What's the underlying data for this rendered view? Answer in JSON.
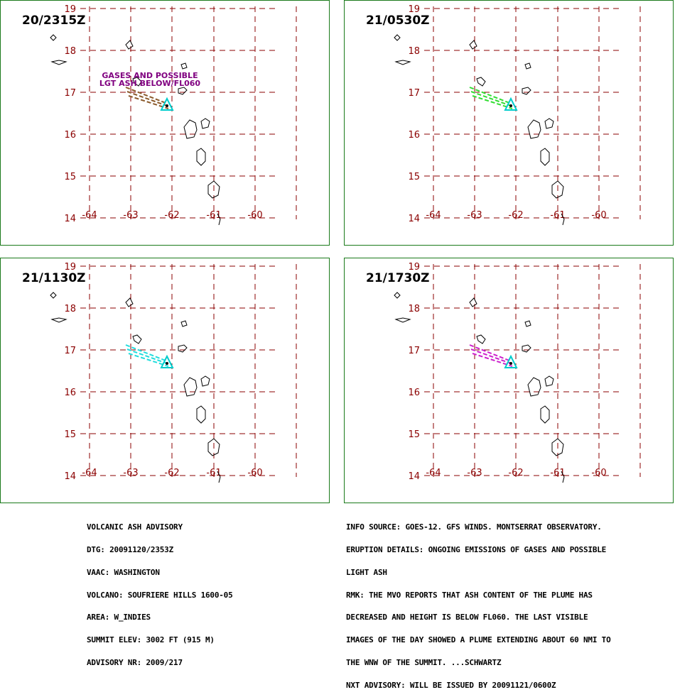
{
  "panels": [
    {
      "time": "20/2315Z",
      "label": [
        "GASES AND POSSIBLE",
        "LGT ASH BELOW/FL060"
      ],
      "plume_color": "#8b5a2b"
    },
    {
      "time": "21/0530Z",
      "label": [],
      "plume_color": "#33dd33"
    },
    {
      "time": "21/1130Z",
      "label": [],
      "plume_color": "#22dddd"
    },
    {
      "time": "21/1730Z",
      "label": [],
      "plume_color": "#cc22cc"
    }
  ],
  "map": {
    "lat_labels": [
      "19",
      "18",
      "17",
      "16",
      "15",
      "14"
    ],
    "lon_labels": [
      "-64",
      "-63",
      "-62",
      "-61",
      "-60"
    ],
    "grid_color": "#8b0000",
    "volcano_color": "#00cccc",
    "label_color": "#800080"
  },
  "advisory_left": [
    "VOLCANIC ASH ADVISORY",
    "DTG: 20091120/2353Z",
    "VAAC: WASHINGTON",
    "VOLCANO: SOUFRIERE HILLS 1600-05",
    "AREA: W_INDIES",
    "SUMMIT ELEV: 3002 FT (915 M)",
    "ADVISORY NR: 2009/217"
  ],
  "advisory_right": [
    "INFO SOURCE: GOES-12. GFS WINDS. MONTSERRAT OBSERVATORY.",
    "ERUPTION DETAILS: ONGOING EMISSIONS OF GASES AND POSSIBLE",
    "LIGHT ASH",
    "RMK: THE MVO REPORTS THAT ASH CONTENT OF THE PLUME HAS",
    "DECREASED AND HEIGHT IS BELOW FL060. THE LAST VISIBLE",
    "IMAGES OF THE DAY SHOWED A PLUME EXTENDING ABOUT 60 NMI TO",
    "THE WNW OF THE SUMMIT. ...SCHWARTZ",
    "NXT ADVISORY: WILL BE ISSUED BY 20091121/0600Z"
  ]
}
